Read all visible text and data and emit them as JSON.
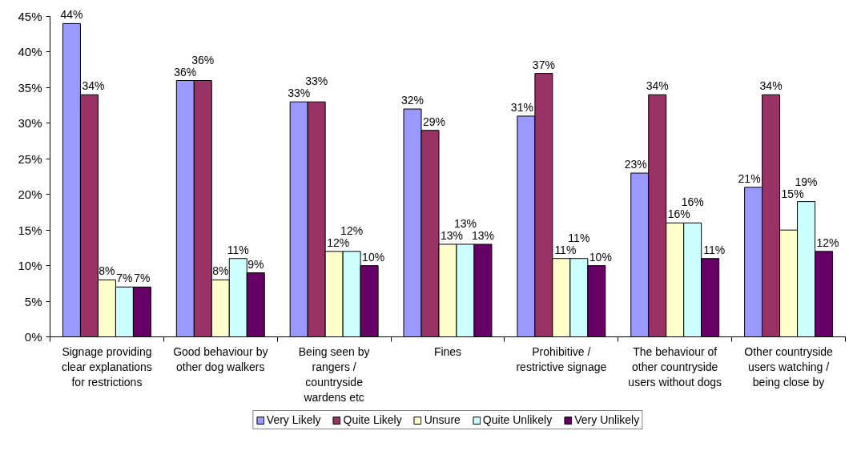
{
  "chart_data": {
    "type": "bar",
    "categories": [
      "Signage providing clear explanations for restrictions",
      "Good behaviour by other dog walkers",
      "Being seen by rangers / countryside wardens etc",
      "Fines",
      "Prohibitive / restrictive signage",
      "The behaviour of other countryside users without dogs",
      "Other countryside users watching / being close by"
    ],
    "series": [
      {
        "name": "Very Likely",
        "color": "#9999ff",
        "values": [
          44,
          36,
          33,
          32,
          31,
          23,
          21
        ],
        "value_labels": [
          "44%",
          "36%",
          "33%",
          "32%",
          "31%",
          "23%",
          "21%"
        ]
      },
      {
        "name": "Quite Likely",
        "color": "#993366",
        "values": [
          34,
          36,
          33,
          29,
          37,
          34,
          34
        ],
        "value_labels": [
          "34%",
          "36%",
          "33%",
          "29%",
          "37%",
          "34%",
          "34%"
        ]
      },
      {
        "name": "Unsure",
        "color": "#ffffcc",
        "values": [
          8,
          8,
          12,
          13,
          11,
          16,
          15
        ],
        "value_labels": [
          "8%",
          "8%",
          "12%",
          "13%",
          "11%",
          "16%",
          "15%"
        ]
      },
      {
        "name": "Quite Unlikely",
        "color": "#ccffff",
        "values": [
          7,
          11,
          12,
          13,
          11,
          16,
          19
        ],
        "value_labels": [
          "7%",
          "11%",
          "12%",
          "13%",
          "11%",
          "16%",
          "19%"
        ]
      },
      {
        "name": "Very Unlikely",
        "color": "#660066",
        "values": [
          7,
          9,
          10,
          13,
          10,
          11,
          12
        ],
        "value_labels": [
          "7%",
          "9%",
          "10%",
          "13%",
          "10%",
          "11%",
          "12%"
        ]
      }
    ],
    "ylim": [
      0,
      45
    ],
    "yticks": [
      {
        "value": 0,
        "label": "0%"
      },
      {
        "value": 5,
        "label": "5%"
      },
      {
        "value": 10,
        "label": "10%"
      },
      {
        "value": 15,
        "label": "15%"
      },
      {
        "value": 20,
        "label": "20%"
      },
      {
        "value": 25,
        "label": "25%"
      },
      {
        "value": 30,
        "label": "30%"
      },
      {
        "value": 35,
        "label": "35%"
      },
      {
        "value": 40,
        "label": "40%"
      },
      {
        "value": 45,
        "label": "45%"
      }
    ],
    "grid": false,
    "legend": "bottom"
  }
}
